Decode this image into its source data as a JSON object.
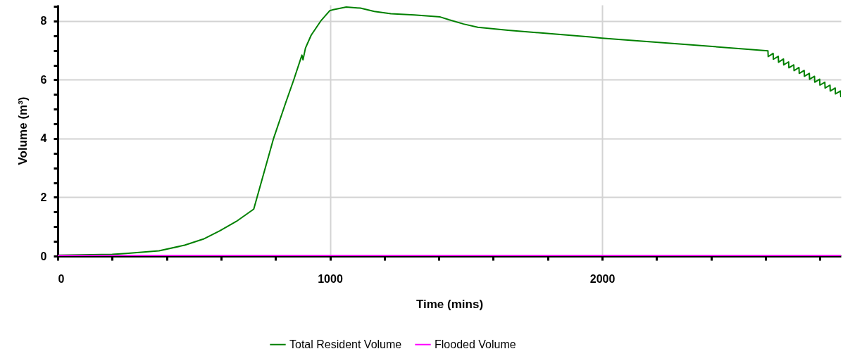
{
  "chart_data": {
    "type": "line",
    "xlabel": "Time (mins)",
    "ylabel": "Volume (m³)",
    "xlim": [
      0,
      2877
    ],
    "ylim": [
      0,
      8.55
    ],
    "xticks": [
      0,
      {
        "value": 200,
        "label": null
      },
      {
        "value": 400,
        "label": null
      },
      {
        "value": 600,
        "label": null
      },
      {
        "value": 800,
        "label": null
      },
      1000,
      {
        "value": 1200,
        "label": null
      },
      {
        "value": 1400,
        "label": null
      },
      {
        "value": 1600,
        "label": null
      },
      {
        "value": 1800,
        "label": null
      },
      2000,
      {
        "value": 2200,
        "label": null
      },
      {
        "value": 2400,
        "label": null
      },
      {
        "value": 2600,
        "label": null
      },
      {
        "value": 2800,
        "label": null
      }
    ],
    "yticks": [
      0,
      {
        "value": 0.5,
        "label": null
      },
      {
        "value": 1,
        "label": null
      },
      {
        "value": 1.5,
        "label": null
      },
      2,
      {
        "value": 2.5,
        "label": null
      },
      {
        "value": 3,
        "label": null
      },
      {
        "value": 3.5,
        "label": null
      },
      4,
      {
        "value": 4.5,
        "label": null
      },
      {
        "value": 5,
        "label": null
      },
      {
        "value": 5.5,
        "label": null
      },
      6,
      {
        "value": 6.5,
        "label": null
      },
      {
        "value": 7,
        "label": null
      },
      {
        "value": 7.5,
        "label": null
      },
      8,
      {
        "value": 8.5,
        "label": null
      }
    ],
    "grid": true,
    "legend": "bottom",
    "marker": "none",
    "line_style": "solid",
    "series": [
      {
        "name": "Total Resident Volume",
        "color": "#008000",
        "x": [
          0,
          200,
          251,
          372,
          466,
          535,
          595,
          656,
          720,
          793,
          837,
          867,
          897,
          901,
          910,
          931,
          966,
          1000,
          1009,
          1060,
          1112,
          1163,
          1224,
          1310,
          1405,
          1439,
          1491,
          1543,
          1654,
          1783,
          1956,
          2000,
          2609,
          2610,
          2628,
          2629,
          2647,
          2648,
          2666,
          2667,
          2685,
          2686,
          2704,
          2705,
          2723,
          2724,
          2742,
          2743,
          2761,
          2762,
          2780,
          2781,
          2799,
          2800,
          2818,
          2819,
          2837,
          2838,
          2856,
          2857,
          2875,
          2877
        ],
        "values": [
          0.03,
          0.06,
          0.09,
          0.18,
          0.37,
          0.58,
          0.86,
          1.18,
          1.6,
          4.01,
          5.21,
          6.0,
          6.84,
          6.68,
          7.08,
          7.52,
          8.0,
          8.36,
          8.38,
          8.48,
          8.44,
          8.33,
          8.25,
          8.21,
          8.14,
          8.04,
          7.9,
          7.79,
          7.69,
          7.59,
          7.46,
          7.42,
          6.99,
          6.79,
          6.9,
          6.7,
          6.8,
          6.6,
          6.71,
          6.51,
          6.61,
          6.41,
          6.51,
          6.31,
          6.42,
          6.22,
          6.32,
          6.12,
          6.22,
          6.02,
          6.12,
          5.92,
          6.02,
          5.82,
          5.92,
          5.72,
          5.82,
          5.62,
          5.72,
          5.52,
          5.62,
          5.41
        ]
      },
      {
        "name": "Flooded Volume",
        "color": "#ff00ff",
        "x": [
          0,
          2877
        ],
        "values": [
          0.02,
          0.02
        ]
      }
    ]
  }
}
